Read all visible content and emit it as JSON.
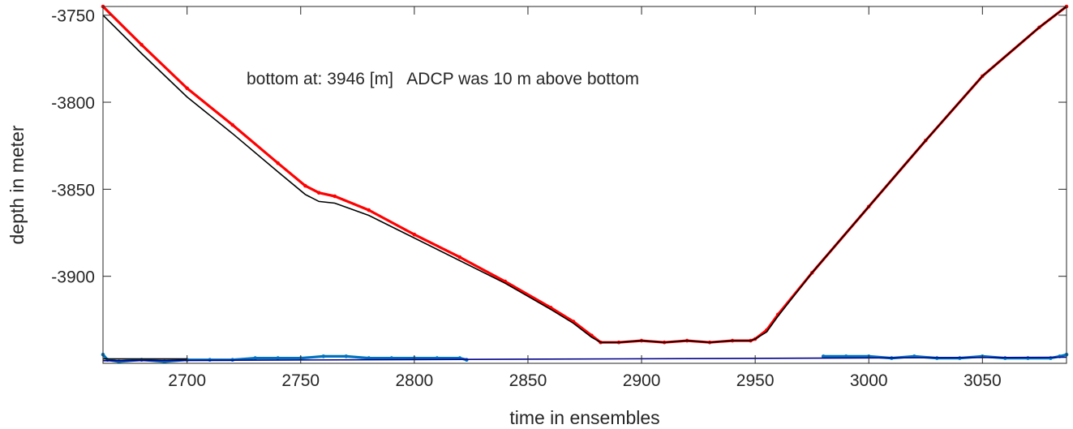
{
  "chart_data": {
    "type": "line",
    "title": "",
    "xlabel": "time in ensembles",
    "ylabel": "depth in meter",
    "annotation": "bottom at: 3946 [m]   ADCP was 10 m above bottom",
    "xlim": [
      2663,
      3087
    ],
    "ylim": [
      -3950,
      -3745
    ],
    "x_ticks": [
      2700,
      2750,
      2800,
      2850,
      2900,
      2950,
      3000,
      3050
    ],
    "y_ticks": [
      -3750,
      -3800,
      -3850,
      -3900
    ],
    "grid": false,
    "colors": {
      "red_series": "#ff0000",
      "black_series": "#000000",
      "blue_series": "#0072bd",
      "navy_line": "#00008b",
      "axes": "#262626"
    },
    "series": [
      {
        "color": "#ff0000",
        "style": "markers",
        "x": [
          2663,
          2680,
          2700,
          2720,
          2740,
          2752,
          2758,
          2765,
          2780,
          2800,
          2820,
          2840,
          2860,
          2870,
          2878,
          2882,
          2890,
          2900,
          2910,
          2920,
          2930,
          2940,
          2948,
          2950,
          2955,
          2960,
          2975,
          3000,
          3025,
          3050,
          3075,
          3087
        ],
        "y": [
          -3745,
          -3767,
          -3792,
          -3813,
          -3835,
          -3848,
          -3852,
          -3854,
          -3862,
          -3876,
          -3889,
          -3903,
          -3918,
          -3926,
          -3934,
          -3938,
          -3938,
          -3937,
          -3938,
          -3937,
          -3938,
          -3937,
          -3937,
          -3936,
          -3931,
          -3922,
          -3898,
          -3860,
          -3822,
          -3785,
          -3757,
          -3745
        ]
      },
      {
        "color": "#000000",
        "style": "line",
        "x": [
          2663,
          2680,
          2700,
          2720,
          2740,
          2752,
          2758,
          2765,
          2780,
          2800,
          2820,
          2840,
          2860,
          2870,
          2878,
          2882,
          2890,
          2900,
          2910,
          2920,
          2930,
          2940,
          2948,
          2950,
          2955,
          2960,
          2975,
          3000,
          3025,
          3050,
          3075,
          3087
        ],
        "y": [
          -3750,
          -3772,
          -3797,
          -3818,
          -3840,
          -3853,
          -3857,
          -3858,
          -3865,
          -3878,
          -3891,
          -3904,
          -3919,
          -3927,
          -3935,
          -3938,
          -3938,
          -3937,
          -3938,
          -3937,
          -3938,
          -3937,
          -3937,
          -3936,
          -3932,
          -3923,
          -3898,
          -3860,
          -3822,
          -3785,
          -3757,
          -3745
        ]
      },
      {
        "color": "#0072bd",
        "style": "markers",
        "x": [
          2663,
          2665,
          2670,
          2680,
          2690,
          2700,
          2710,
          2720,
          2730,
          2740,
          2750,
          2760,
          2770,
          2780,
          2790,
          2800,
          2810,
          2820,
          2823
        ],
        "y": [
          -3945,
          -3948,
          -3949,
          -3948,
          -3949,
          -3948,
          -3948,
          -3948,
          -3947,
          -3947,
          -3947,
          -3946,
          -3946,
          -3947,
          -3947,
          -3947,
          -3947,
          -3947,
          -3948
        ]
      },
      {
        "color": "#0072bd",
        "style": "markers",
        "x": [
          2980,
          2990,
          3000,
          3010,
          3020,
          3030,
          3040,
          3050,
          3060,
          3070,
          3080,
          3084,
          3087
        ],
        "y": [
          -3946,
          -3946,
          -3946,
          -3947,
          -3946,
          -3947,
          -3947,
          -3946,
          -3947,
          -3947,
          -3947,
          -3946,
          -3945
        ]
      },
      {
        "color": "#00008b",
        "style": "line",
        "x": [
          2663,
          3087
        ],
        "y": [
          -3948.5,
          -3946.5
        ]
      },
      {
        "color": "#000000",
        "style": "line",
        "x": [
          2663,
          2700
        ],
        "y": [
          -3947.5,
          -3947.5
        ]
      }
    ]
  }
}
